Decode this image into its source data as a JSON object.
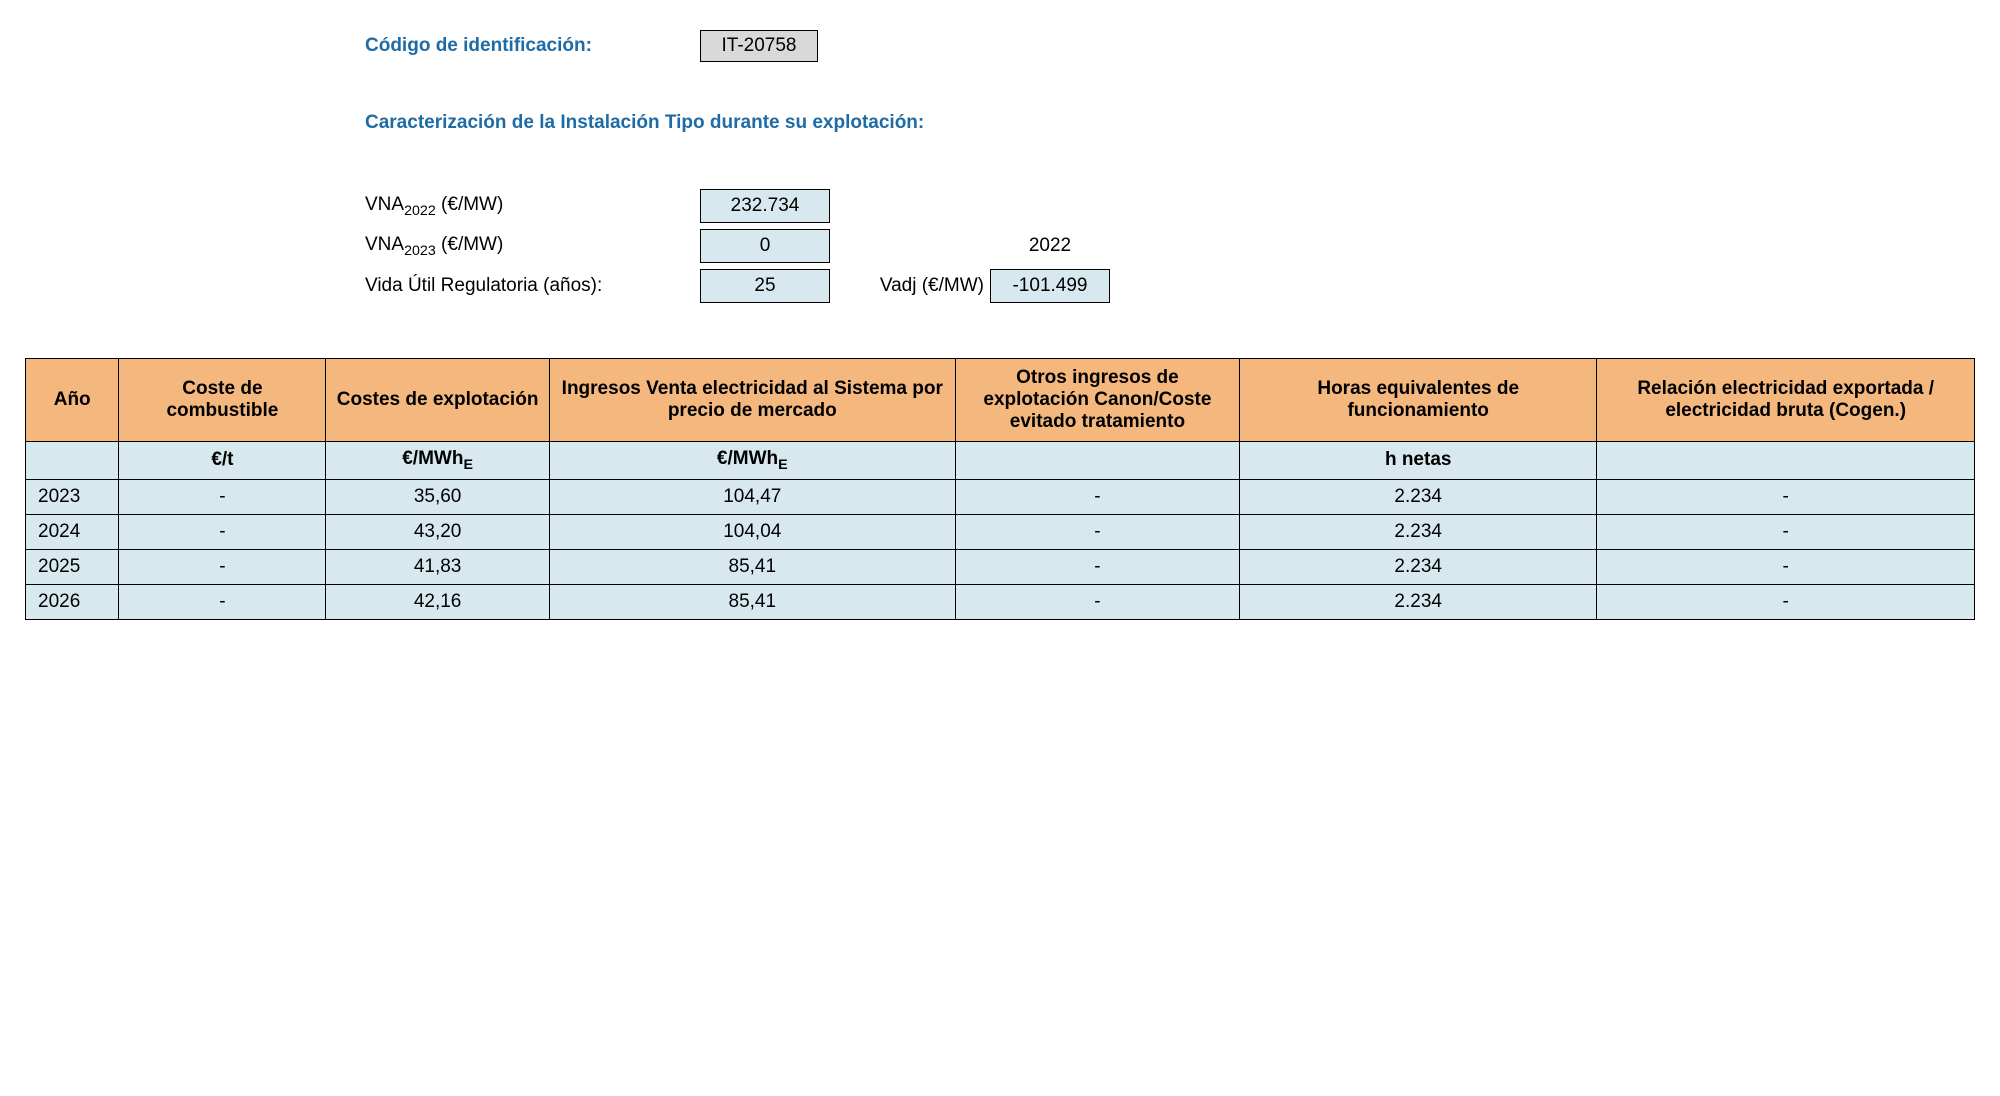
{
  "colors": {
    "heading": "#1f6ba5",
    "header_bg": "#f4b77e",
    "cell_bg": "#d7e9ef",
    "id_box_bg": "#d9d9d9",
    "border": "#000000",
    "text": "#000000",
    "page_bg": "#ffffff"
  },
  "typography": {
    "base_fontsize_pt": 14,
    "heading_weight": "bold"
  },
  "identification": {
    "label": "Código de identificación:",
    "value": "IT-20758"
  },
  "section": {
    "title": "Caracterización de la Instalación Tipo durante su explotación:"
  },
  "parameters": {
    "vna2022": {
      "label_prefix": "VNA",
      "label_sub": "2022",
      "label_suffix": " (€/MW)",
      "value": "232.734"
    },
    "vna2023": {
      "label_prefix": "VNA",
      "label_sub": "2023",
      "label_suffix": " (€/MW)",
      "value": "0"
    },
    "vida_util": {
      "label": "Vida Útil Regulatoria (años):",
      "value": "25"
    },
    "ref_year": "2022",
    "vadj": {
      "label": "Vadj (€/MW)",
      "value": "-101.499"
    }
  },
  "table": {
    "columns": [
      "Año",
      "Coste de combustible",
      "Costes de explotación",
      "Ingresos Venta electricidad al Sistema por precio de mercado",
      "Otros ingresos de explotación Canon/Coste evitado tratamiento",
      "Horas equivalentes de funcionamiento",
      "Relación electricidad exportada / electricidad bruta (Cogen.)"
    ],
    "column_widths_pct": [
      4.6,
      10.2,
      11.0,
      20.0,
      14.0,
      17.6,
      18.6
    ],
    "units": {
      "col0": "",
      "col1": "€/t",
      "col2_prefix": "€/MWh",
      "col2_sub": "E",
      "col3_prefix": "€/MWh",
      "col3_sub": "E",
      "col4": "",
      "col5": "h netas",
      "col6": ""
    },
    "rows": [
      {
        "year": "2023",
        "fuel": "-",
        "opex": "35,60",
        "income": "104,47",
        "other": "-",
        "hours": "2.234",
        "ratio": "-"
      },
      {
        "year": "2024",
        "fuel": "-",
        "opex": "43,20",
        "income": "104,04",
        "other": "-",
        "hours": "2.234",
        "ratio": "-"
      },
      {
        "year": "2025",
        "fuel": "-",
        "opex": "41,83",
        "income": "85,41",
        "other": "-",
        "hours": "2.234",
        "ratio": "-"
      },
      {
        "year": "2026",
        "fuel": "-",
        "opex": "42,16",
        "income": "85,41",
        "other": "-",
        "hours": "2.234",
        "ratio": "-"
      }
    ]
  }
}
